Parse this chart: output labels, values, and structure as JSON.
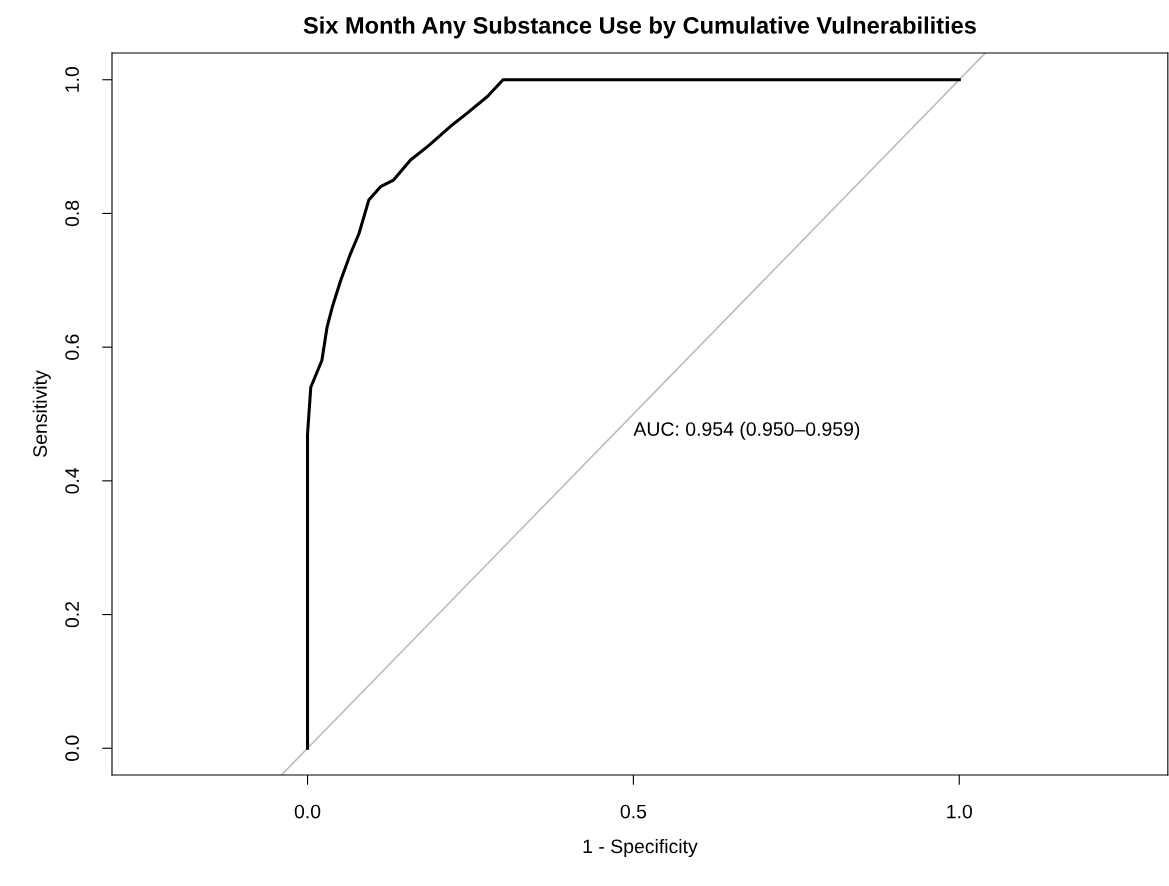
{
  "chart_data": {
    "type": "line",
    "title": "Six Month Any Substance Use by Cumulative Vulnerabilities",
    "xlabel": "1 - Specificity",
    "ylabel": "Sensitivity",
    "series": [
      {
        "color": "#bebebe",
        "x": [
          -0.04,
          1.04
        ],
        "values": [
          -0.04,
          1.04
        ]
      },
      {
        "color": "#000000",
        "x": [
          0,
          0,
          0.005,
          0.022,
          0.03,
          0.038,
          0.051,
          0.066,
          0.079,
          0.094,
          0.112,
          0.132,
          0.158,
          0.184,
          0.219,
          0.245,
          0.276,
          0.3,
          1.0
        ],
        "values": [
          0,
          0.47,
          0.54,
          0.58,
          0.63,
          0.66,
          0.7,
          0.74,
          0.77,
          0.82,
          0.84,
          0.85,
          0.88,
          0.9,
          0.93,
          0.95,
          0.975,
          1.0,
          1.0
        ]
      }
    ],
    "annotations": [
      "AUC: 0.954 (0.950–0.959)"
    ],
    "xlim": [
      -0.3,
      1.32
    ],
    "ylim": [
      -0.04,
      1.04
    ],
    "xticks": [
      {
        "value": 0,
        "label": "0.0"
      },
      {
        "value": 0.5,
        "label": "0.5"
      },
      {
        "value": 1,
        "label": "1.0"
      }
    ],
    "yticks": [
      {
        "value": 0,
        "label": "0.0"
      },
      {
        "value": 0.2,
        "label": "0.2"
      },
      {
        "value": 0.4,
        "label": "0.4"
      },
      {
        "value": 0.6,
        "label": "0.6"
      },
      {
        "value": 0.8,
        "label": "0.8"
      },
      {
        "value": 1,
        "label": "1.0"
      }
    ],
    "grid": false,
    "marker": "none",
    "line_style": "solid"
  }
}
